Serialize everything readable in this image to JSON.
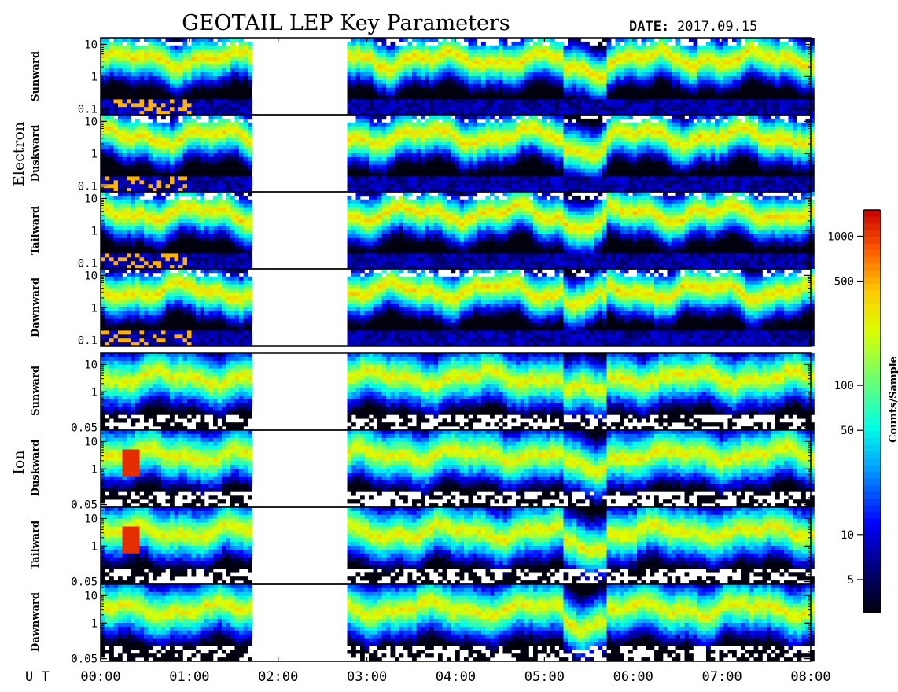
{
  "title": "GEOTAIL LEP Key Parameters",
  "date_label": "DATE:",
  "date_value": "2017.09.15",
  "ut_label": "U T",
  "colorbar": {
    "label": "Counts/Sample",
    "ticks": [
      "1000",
      "500",
      "100",
      "50",
      "10",
      "5"
    ],
    "tick_values": [
      1000,
      500,
      100,
      50,
      10,
      5
    ],
    "range": [
      3,
      1500
    ],
    "scale": "log"
  },
  "time_ticks": [
    "00:00",
    "01:00",
    "02:00",
    "03:00",
    "04:00",
    "05:00",
    "06:00",
    "07:00",
    "08:00"
  ],
  "chart_data": {
    "type": "heatmap",
    "x_range_hours": [
      0,
      8
    ],
    "y_scale": "log",
    "data_gap_hours": [
      1.7,
      2.8
    ],
    "groups": [
      {
        "name": "Electron",
        "y_range": [
          0.065,
          16
        ],
        "y_ticks": [
          "10",
          "1",
          "0.1"
        ],
        "y_tick_values": [
          10,
          1,
          0.1
        ],
        "panels": [
          {
            "label": "Sunward"
          },
          {
            "label": "Duskward"
          },
          {
            "label": "Tailward"
          },
          {
            "label": "Dawnward"
          }
        ]
      },
      {
        "name": "Ion",
        "y_range": [
          0.04,
          26
        ],
        "y_ticks": [
          "10",
          "1",
          "0.05"
        ],
        "y_tick_values": [
          10,
          1,
          0.05
        ],
        "panels": [
          {
            "label": "Sunward"
          },
          {
            "label": "Duskward"
          },
          {
            "label": "Tailward"
          },
          {
            "label": "Dawnward"
          }
        ]
      }
    ]
  }
}
